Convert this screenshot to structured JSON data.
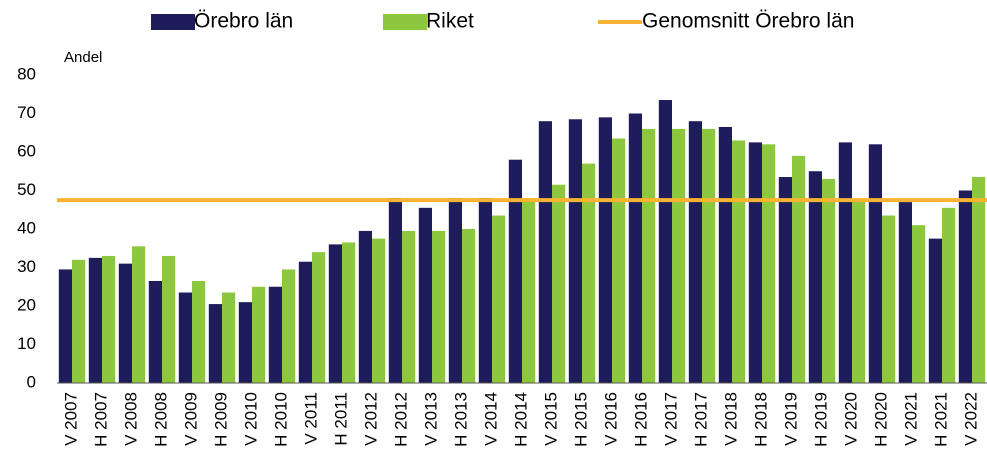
{
  "chart_data": {
    "type": "bar",
    "y_label": "Andel",
    "categories": [
      "V 2007",
      "H 2007",
      "V 2008",
      "H 2008",
      "V 2009",
      "H 2009",
      "V 2010",
      "H 2010",
      "V 2011",
      "H 2011",
      "V 2012",
      "H 2012",
      "V 2013",
      "H 2013",
      "V 2014",
      "H 2014",
      "V 2015",
      "H 2015",
      "V 2016",
      "H 2016",
      "V 2017",
      "H 2017",
      "V 2018",
      "H 2018",
      "V 2019",
      "H 2019",
      "V 2020",
      "H 2020",
      "V 2021",
      "H 2021",
      "V 2022"
    ],
    "series": [
      {
        "name": "Örebro län",
        "color": "#1f1c5c",
        "values": [
          29.5,
          32.5,
          31,
          26.5,
          23.5,
          20.5,
          21,
          25,
          31.5,
          36,
          39.5,
          48,
          45.5,
          48,
          48,
          58,
          68,
          68.5,
          69,
          70,
          73.5,
          68,
          66.5,
          62.5,
          53.5,
          55,
          62.5,
          62,
          47,
          37.5,
          50
        ]
      },
      {
        "name": "Riket",
        "color": "#8dc63f",
        "values": [
          32,
          33,
          35.5,
          33,
          26.5,
          23.5,
          25,
          29.5,
          34,
          36.5,
          37.5,
          39.5,
          39.5,
          40,
          43.5,
          48,
          51.5,
          57,
          63.5,
          66,
          66,
          66,
          63,
          62,
          59,
          53,
          47.5,
          43.5,
          41,
          45.5,
          53.5
        ]
      }
    ],
    "average": {
      "name": "Genomsnitt Örebro län",
      "color": "#f9b233",
      "value": 47.5
    },
    "ylim": [
      0,
      80
    ],
    "yticks": [
      0,
      10,
      20,
      30,
      40,
      50,
      60,
      70,
      80
    ],
    "grid": false
  }
}
